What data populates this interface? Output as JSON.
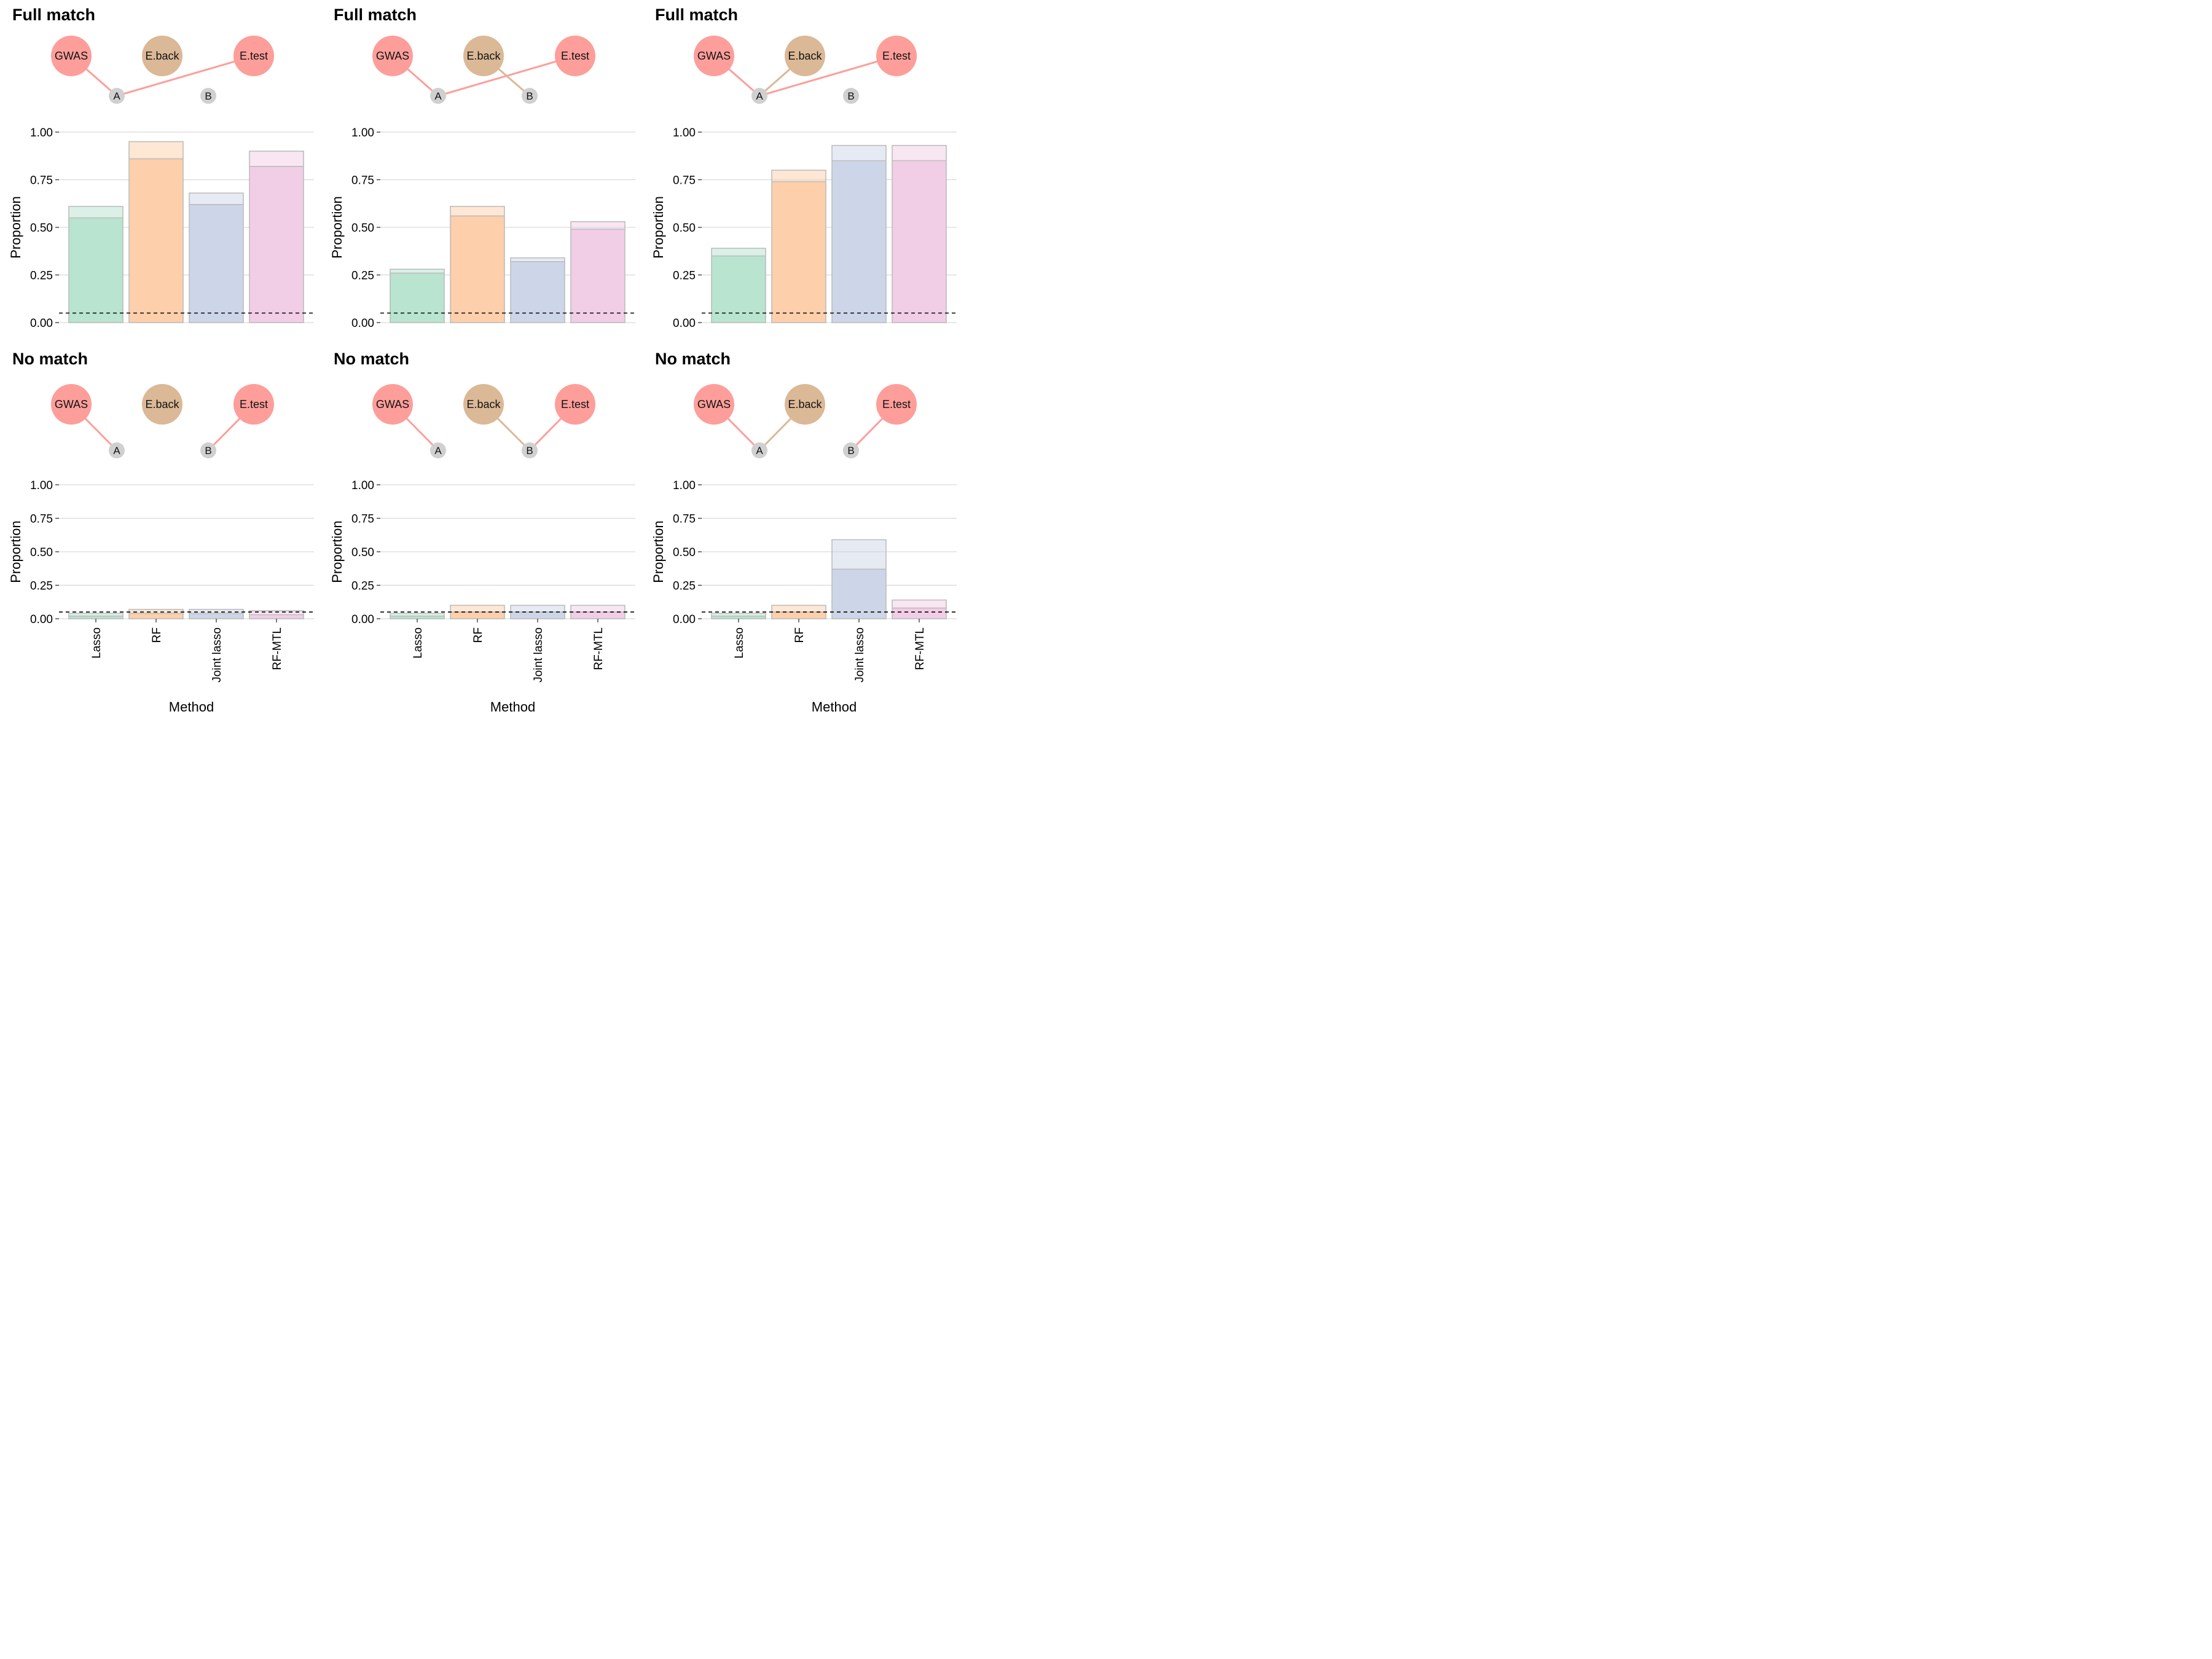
{
  "colors": {
    "gwas_node": "#fd9e9a",
    "eback_node": "#dbb896",
    "etest_node": "#fd9e9a",
    "snp_node": "#d0d0d0",
    "method_colors": [
      "#b8e4d0",
      "#fdcfaa",
      "#cdd6e8",
      "#f2cde6"
    ],
    "bar_outline": "#bdbdbd",
    "grid": "#d9d9d9",
    "threshold_line": "#000000"
  },
  "network": {
    "nodes": {
      "gwas": "GWAS",
      "eback": "E.back",
      "etest": "E.test",
      "snp_a": "A",
      "snp_b": "B"
    }
  },
  "chart_data": [
    {
      "type": "bar",
      "title": "Full match",
      "edges": [
        [
          "gwas",
          "snp_a"
        ],
        [
          "etest",
          "snp_a"
        ]
      ],
      "categories": [
        "Lasso",
        "RF",
        "Joint lasso",
        "RF-MTL"
      ],
      "series": [
        {
          "values": [
            0.55,
            0.86,
            0.62,
            0.82
          ]
        },
        {
          "values": [
            0.61,
            0.95,
            0.68,
            0.9
          ]
        }
      ],
      "reference_line": 0.05,
      "xlabel": "",
      "ylabel": "Proportion",
      "ylim": [
        0,
        1
      ],
      "yticks": [
        "0.00",
        "0.25",
        "0.50",
        "0.75",
        "1.00"
      ]
    },
    {
      "type": "bar",
      "title": "Full match",
      "edges": [
        [
          "gwas",
          "snp_a"
        ],
        [
          "etest",
          "snp_a"
        ],
        [
          "eback",
          "snp_b"
        ]
      ],
      "categories": [
        "Lasso",
        "RF",
        "Joint lasso",
        "RF-MTL"
      ],
      "series": [
        {
          "values": [
            0.26,
            0.56,
            0.32,
            0.49
          ]
        },
        {
          "values": [
            0.28,
            0.61,
            0.34,
            0.53
          ]
        }
      ],
      "reference_line": 0.05,
      "xlabel": "",
      "ylabel": "Proportion",
      "ylim": [
        0,
        1
      ],
      "yticks": [
        "0.00",
        "0.25",
        "0.50",
        "0.75",
        "1.00"
      ]
    },
    {
      "type": "bar",
      "title": "Full match",
      "edges": [
        [
          "gwas",
          "snp_a"
        ],
        [
          "etest",
          "snp_a"
        ],
        [
          "eback",
          "snp_a"
        ]
      ],
      "categories": [
        "Lasso",
        "RF",
        "Joint lasso",
        "RF-MTL"
      ],
      "series": [
        {
          "values": [
            0.35,
            0.74,
            0.85,
            0.85
          ]
        },
        {
          "values": [
            0.39,
            0.8,
            0.93,
            0.93
          ]
        }
      ],
      "reference_line": 0.05,
      "xlabel": "",
      "ylabel": "Proportion",
      "ylim": [
        0,
        1
      ],
      "yticks": [
        "0.00",
        "0.25",
        "0.50",
        "0.75",
        "1.00"
      ]
    },
    {
      "type": "bar",
      "title": "No match",
      "edges": [
        [
          "gwas",
          "snp_a"
        ],
        [
          "etest",
          "snp_b"
        ]
      ],
      "categories": [
        "Lasso",
        "RF",
        "Joint lasso",
        "RF-MTL"
      ],
      "series": [
        {
          "values": [
            0.02,
            0.04,
            0.04,
            0.03
          ]
        },
        {
          "values": [
            0.04,
            0.07,
            0.07,
            0.06
          ]
        }
      ],
      "reference_line": 0.05,
      "xlabel": "Method",
      "ylabel": "Proportion",
      "ylim": [
        0,
        1
      ],
      "yticks": [
        "0.00",
        "0.25",
        "0.50",
        "0.75",
        "1.00"
      ]
    },
    {
      "type": "bar",
      "title": "No match",
      "edges": [
        [
          "gwas",
          "snp_a"
        ],
        [
          "etest",
          "snp_b"
        ],
        [
          "eback",
          "snp_b"
        ]
      ],
      "categories": [
        "Lasso",
        "RF",
        "Joint lasso",
        "RF-MTL"
      ],
      "series": [
        {
          "values": [
            0.02,
            0.05,
            0.05,
            0.05
          ]
        },
        {
          "values": [
            0.04,
            0.1,
            0.1,
            0.1
          ]
        }
      ],
      "reference_line": 0.05,
      "xlabel": "Method",
      "ylabel": "Proportion",
      "ylim": [
        0,
        1
      ],
      "yticks": [
        "0.00",
        "0.25",
        "0.50",
        "0.75",
        "1.00"
      ]
    },
    {
      "type": "bar",
      "title": "No match",
      "edges": [
        [
          "gwas",
          "snp_a"
        ],
        [
          "eback",
          "snp_a"
        ],
        [
          "etest",
          "snp_b"
        ]
      ],
      "categories": [
        "Lasso",
        "RF",
        "Joint lasso",
        "RF-MTL"
      ],
      "series": [
        {
          "values": [
            0.02,
            0.05,
            0.37,
            0.08
          ]
        },
        {
          "values": [
            0.04,
            0.1,
            0.59,
            0.14
          ]
        }
      ],
      "reference_line": 0.05,
      "xlabel": "Method",
      "ylabel": "Proportion",
      "ylim": [
        0,
        1
      ],
      "yticks": [
        "0.00",
        "0.25",
        "0.50",
        "0.75",
        "1.00"
      ]
    }
  ]
}
